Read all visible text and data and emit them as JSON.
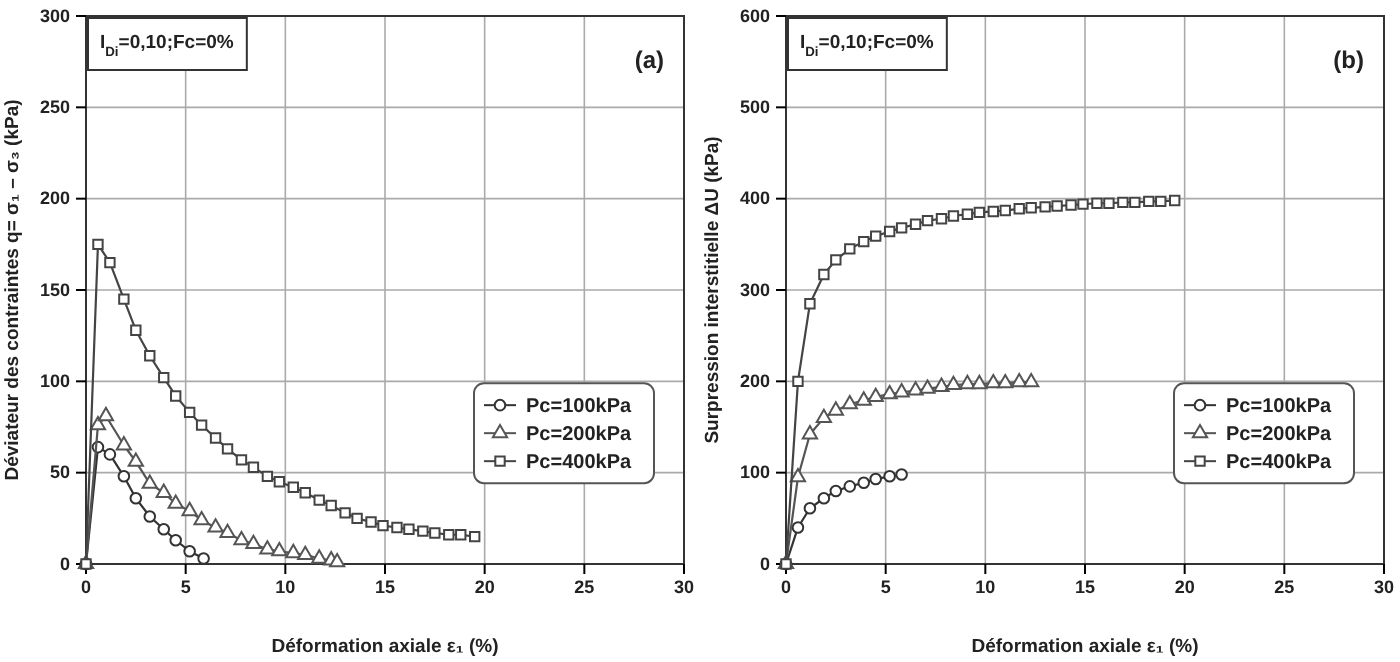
{
  "chart_data": [
    {
      "type": "line",
      "xlabel": "Déformation axiale  ε₁ (%)",
      "ylabel": "Déviateur des contraintes q= σ₁ – σ₃ (kPa)",
      "annotations": [
        "I$_{Di}$=0,10;Fc=0%",
        "(a)"
      ],
      "xlim": [
        0,
        30
      ],
      "xticks": [
        0,
        5,
        10,
        15,
        20,
        25,
        30
      ],
      "ylim": [
        0,
        300
      ],
      "yticks": [
        0,
        50,
        100,
        150,
        200,
        250,
        300
      ],
      "grid": true,
      "legend": "right",
      "series": [
        {
          "name": "Pc=100kPa",
          "color": "#333333",
          "marker": "circle",
          "x": [
            0,
            0.6,
            1.2,
            1.9,
            2.5,
            3.2,
            3.9,
            4.5,
            5.2,
            5.9
          ],
          "values": [
            0,
            64,
            60,
            48,
            36,
            26,
            19,
            13,
            7,
            3
          ]
        },
        {
          "name": "Pc=200kPa",
          "color": "#555555",
          "marker": "triangle",
          "x": [
            0,
            0.6,
            1.0,
            1.9,
            2.5,
            3.2,
            3.9,
            4.5,
            5.2,
            5.8,
            6.5,
            7.1,
            7.8,
            8.4,
            9.1,
            9.7,
            10.4,
            11.0,
            11.7,
            12.3,
            12.6
          ],
          "values": [
            0,
            76,
            81,
            65,
            56,
            44,
            39,
            33,
            29,
            24,
            20,
            17,
            13,
            11,
            8,
            7,
            6,
            5,
            3,
            2,
            1
          ]
        },
        {
          "name": "Pc=400kPa",
          "color": "#444444",
          "marker": "square",
          "x": [
            0,
            0.6,
            1.2,
            1.9,
            2.5,
            3.2,
            3.9,
            4.5,
            5.2,
            5.8,
            6.5,
            7.1,
            7.8,
            8.4,
            9.1,
            9.7,
            10.4,
            11.0,
            11.7,
            12.3,
            13.0,
            13.6,
            14.3,
            14.9,
            15.6,
            16.2,
            16.9,
            17.5,
            18.2,
            18.8,
            19.5
          ],
          "values": [
            0,
            175,
            165,
            145,
            128,
            114,
            102,
            92,
            83,
            76,
            69,
            63,
            57,
            53,
            48,
            45,
            42,
            39,
            35,
            32,
            28,
            25,
            23,
            21,
            20,
            19,
            18,
            17,
            16,
            16,
            15
          ]
        }
      ]
    },
    {
      "type": "line",
      "xlabel": "Déformation axiale  ε₁ (%)",
      "ylabel": "Surpression interstitielle  ΔU (kPa)",
      "annotations": [
        "I$_{Di}$=0,10;Fc=0%",
        "(b)"
      ],
      "xlim": [
        0,
        30
      ],
      "xticks": [
        0,
        5,
        10,
        15,
        20,
        25,
        30
      ],
      "ylim": [
        0,
        600
      ],
      "yticks": [
        0,
        100,
        200,
        300,
        400,
        500,
        600
      ],
      "grid": true,
      "legend": "right",
      "series": [
        {
          "name": "Pc=100kPa",
          "color": "#333333",
          "marker": "circle",
          "x": [
            0,
            0.6,
            1.2,
            1.9,
            2.5,
            3.2,
            3.9,
            4.5,
            5.2,
            5.8
          ],
          "values": [
            0,
            40,
            61,
            72,
            80,
            85,
            89,
            93,
            96,
            98
          ]
        },
        {
          "name": "Pc=200kPa",
          "color": "#555555",
          "marker": "triangle",
          "x": [
            0,
            0.6,
            1.2,
            1.9,
            2.5,
            3.2,
            3.9,
            4.5,
            5.2,
            5.8,
            6.5,
            7.1,
            7.8,
            8.4,
            9.1,
            9.7,
            10.4,
            11.0,
            11.7,
            12.3
          ],
          "values": [
            0,
            95,
            142,
            160,
            168,
            175,
            179,
            183,
            186,
            188,
            190,
            192,
            194,
            196,
            197,
            197,
            198,
            198,
            199,
            199
          ]
        },
        {
          "name": "Pc=400kPa",
          "color": "#444444",
          "marker": "square",
          "x": [
            0,
            0.6,
            1.2,
            1.9,
            2.5,
            3.2,
            3.9,
            4.5,
            5.2,
            5.8,
            6.5,
            7.1,
            7.8,
            8.4,
            9.1,
            9.7,
            10.4,
            11.0,
            11.7,
            12.3,
            13.0,
            13.6,
            14.3,
            14.9,
            15.6,
            16.2,
            16.9,
            17.5,
            18.2,
            18.8,
            19.5
          ],
          "values": [
            0,
            200,
            285,
            317,
            333,
            345,
            353,
            359,
            364,
            368,
            372,
            376,
            378,
            381,
            383,
            385,
            386,
            387,
            389,
            390,
            391,
            392,
            393,
            394,
            395,
            395,
            396,
            396,
            397,
            397,
            398
          ]
        }
      ]
    }
  ]
}
